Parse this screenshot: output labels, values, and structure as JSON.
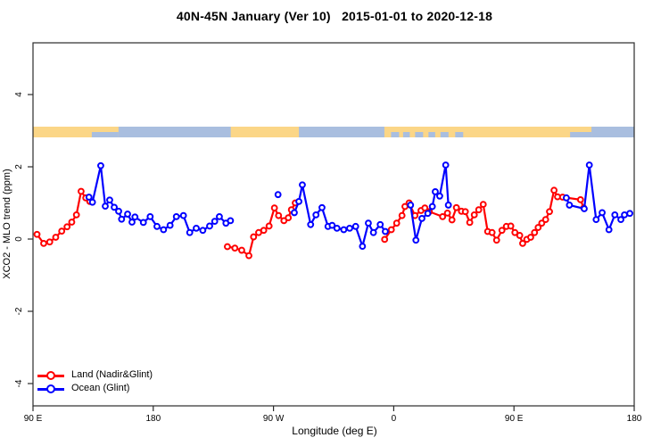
{
  "chart_data": {
    "type": "line",
    "title": "40N-45N January (Ver 10)   2015-01-01 to 2020-12-18",
    "xlabel": "Longitude (deg E)",
    "ylabel": "XCO2 - MLO trend (ppm)",
    "xlim": [
      90,
      540
    ],
    "ylim": [
      -4.6,
      5.4
    ],
    "grid": false,
    "legend_position": "bottom-left",
    "x_ticks": [
      {
        "label": "90 E",
        "lon": 90
      },
      {
        "label": "180",
        "lon": 180
      },
      {
        "label": "90 W",
        "lon": 270
      },
      {
        "label": "0",
        "lon": 360
      },
      {
        "label": "90 E",
        "lon": 450
      },
      {
        "label": "180",
        "lon": 540
      }
    ],
    "y_ticks": [
      {
        "label": "-4",
        "value": -4
      },
      {
        "label": "-2",
        "value": -2
      },
      {
        "label": "0",
        "value": 0
      },
      {
        "label": "2",
        "value": 2
      },
      {
        "label": "4",
        "value": 4
      }
    ],
    "band": {
      "description": "land/ocean strip drawn at about 2.8-3.1 ppm",
      "value_range": [
        2.81,
        3.11
      ],
      "land_color": "#FBD687",
      "ocean_color": "#A9BEDF",
      "land_segments_lon": [
        [
          90,
          154
        ],
        [
          238,
          289
        ],
        [
          353,
          508
        ]
      ],
      "ocean_patches_lon": [
        [
          134,
          154
        ],
        [
          358,
          364
        ],
        [
          367,
          372
        ],
        [
          376,
          382
        ],
        [
          386,
          391
        ],
        [
          395,
          401
        ],
        [
          406,
          412
        ],
        [
          492,
          508
        ]
      ]
    },
    "series": [
      {
        "name": "Land (Nadir&Glint)",
        "color": "#ff0000",
        "segments": [
          [
            [
              93,
              0.13
            ],
            [
              98,
              -0.12
            ],
            [
              102.5,
              -0.08
            ],
            [
              107,
              0.05
            ],
            [
              111.5,
              0.22
            ],
            [
              115.5,
              0.34
            ],
            [
              119,
              0.47
            ],
            [
              122.5,
              0.67
            ],
            [
              126,
              1.32
            ],
            [
              129.5,
              1.14
            ],
            [
              132.5,
              1.04
            ]
          ],
          [
            [
              235.5,
              -0.21
            ],
            [
              241.1,
              -0.25
            ],
            [
              246.2,
              -0.31
            ],
            [
              251.6,
              -0.46
            ],
            [
              255.1,
              0.06
            ],
            [
              258.9,
              0.18
            ],
            [
              262.7,
              0.24
            ],
            [
              266.7,
              0.36
            ],
            [
              270.7,
              0.86
            ],
            [
              273.8,
              0.65
            ],
            [
              277.8,
              0.51
            ],
            [
              281.1,
              0.59
            ],
            [
              283.4,
              0.81
            ],
            [
              286.3,
              1.0
            ]
          ],
          [
            [
              353.2,
              -0.01
            ],
            [
              358.2,
              0.26
            ],
            [
              362.2,
              0.44
            ],
            [
              366.2,
              0.65
            ],
            [
              368.4,
              0.9
            ],
            [
              371.5,
              1.0
            ],
            [
              375.9,
              0.65
            ],
            [
              380.4,
              0.79
            ],
            [
              383.3,
              0.86
            ],
            [
              386.6,
              0.76
            ],
            [
              396.6,
              0.62
            ],
            [
              400.2,
              0.72
            ],
            [
              403.6,
              0.53
            ],
            [
              406.9,
              0.87
            ],
            [
              410.7,
              0.77
            ],
            [
              413.6,
              0.76
            ],
            [
              416.9,
              0.46
            ],
            [
              420.3,
              0.67
            ],
            [
              423.6,
              0.81
            ],
            [
              427,
              0.96
            ],
            [
              430.3,
              0.21
            ],
            [
              433.6,
              0.18
            ],
            [
              437,
              -0.03
            ],
            [
              441,
              0.24
            ],
            [
              444.3,
              0.35
            ],
            [
              447.6,
              0.36
            ],
            [
              450.7,
              0.18
            ],
            [
              454.3,
              0.1
            ],
            [
              456.5,
              -0.12
            ],
            [
              459.6,
              -0.01
            ],
            [
              462.5,
              0.05
            ],
            [
              465.4,
              0.18
            ],
            [
              468.1,
              0.32
            ],
            [
              470.8,
              0.44
            ],
            [
              473.7,
              0.54
            ],
            [
              476.6,
              0.76
            ],
            [
              480,
              1.35
            ],
            [
              482.6,
              1.17
            ],
            [
              486.4,
              1.16
            ],
            [
              499.8,
              1.09
            ],
            [
              502.2,
              0.86
            ]
          ]
        ]
      },
      {
        "name": "Ocean (Glint)",
        "color": "#0000ff",
        "segments": [
          [
            [
              131.9,
              1.16
            ],
            [
              134.5,
              1.02
            ],
            [
              140.7,
              2.03
            ],
            [
              144.1,
              0.91
            ],
            [
              147.4,
              1.08
            ],
            [
              150.8,
              0.88
            ],
            [
              154.1,
              0.77
            ],
            [
              156.3,
              0.55
            ],
            [
              160.8,
              0.69
            ],
            [
              164.1,
              0.47
            ],
            [
              166.3,
              0.61
            ],
            [
              172.6,
              0.46
            ],
            [
              177.7,
              0.62
            ],
            [
              182.8,
              0.35
            ],
            [
              187.7,
              0.26
            ],
            [
              192.6,
              0.38
            ],
            [
              197.3,
              0.62
            ],
            [
              202.6,
              0.65
            ],
            [
              207.3,
              0.18
            ],
            [
              212.2,
              0.3
            ],
            [
              217.1,
              0.24
            ],
            [
              222.2,
              0.36
            ],
            [
              226,
              0.49
            ],
            [
              229.5,
              0.62
            ],
            [
              234.4,
              0.44
            ],
            [
              237.8,
              0.51
            ]
          ],
          [
            [
              273.4,
              1.23
            ]
          ],
          [
            [
              285.6,
              0.73
            ],
            [
              289,
              1.04
            ],
            [
              291.6,
              1.5
            ],
            [
              297.8,
              0.4
            ],
            [
              301.8,
              0.67
            ],
            [
              306.3,
              0.87
            ],
            [
              310.8,
              0.35
            ],
            [
              313.9,
              0.38
            ],
            [
              317.5,
              0.3
            ],
            [
              322.6,
              0.26
            ],
            [
              327,
              0.3
            ],
            [
              331.5,
              0.35
            ],
            [
              336.6,
              -0.2
            ],
            [
              341,
              0.44
            ],
            [
              344.8,
              0.18
            ],
            [
              349.9,
              0.4
            ],
            [
              353.7,
              0.21
            ]
          ],
          [
            [
              372.6,
              0.94
            ],
            [
              376.6,
              -0.03
            ],
            [
              381.1,
              0.57
            ],
            [
              385.5,
              0.71
            ],
            [
              388.9,
              0.9
            ],
            [
              391.1,
              1.31
            ],
            [
              394.4,
              1.19
            ],
            [
              398.9,
              2.05
            ],
            [
              400.9,
              0.94
            ]
          ],
          [
            [
              489.2,
              1.14
            ],
            [
              491.5,
              0.94
            ],
            [
              502.6,
              0.84
            ],
            [
              506.4,
              2.05
            ],
            [
              511.5,
              0.54
            ],
            [
              516,
              0.73
            ],
            [
              521.1,
              0.26
            ],
            [
              525.5,
              0.67
            ],
            [
              530,
              0.54
            ],
            [
              532.7,
              0.67
            ],
            [
              536.7,
              0.71
            ]
          ]
        ]
      }
    ],
    "legend": {
      "entries": [
        {
          "label": "Land (Nadir&Glint)",
          "color": "#ff0000"
        },
        {
          "label": "Ocean (Glint)",
          "color": "#0000ff"
        }
      ]
    }
  }
}
